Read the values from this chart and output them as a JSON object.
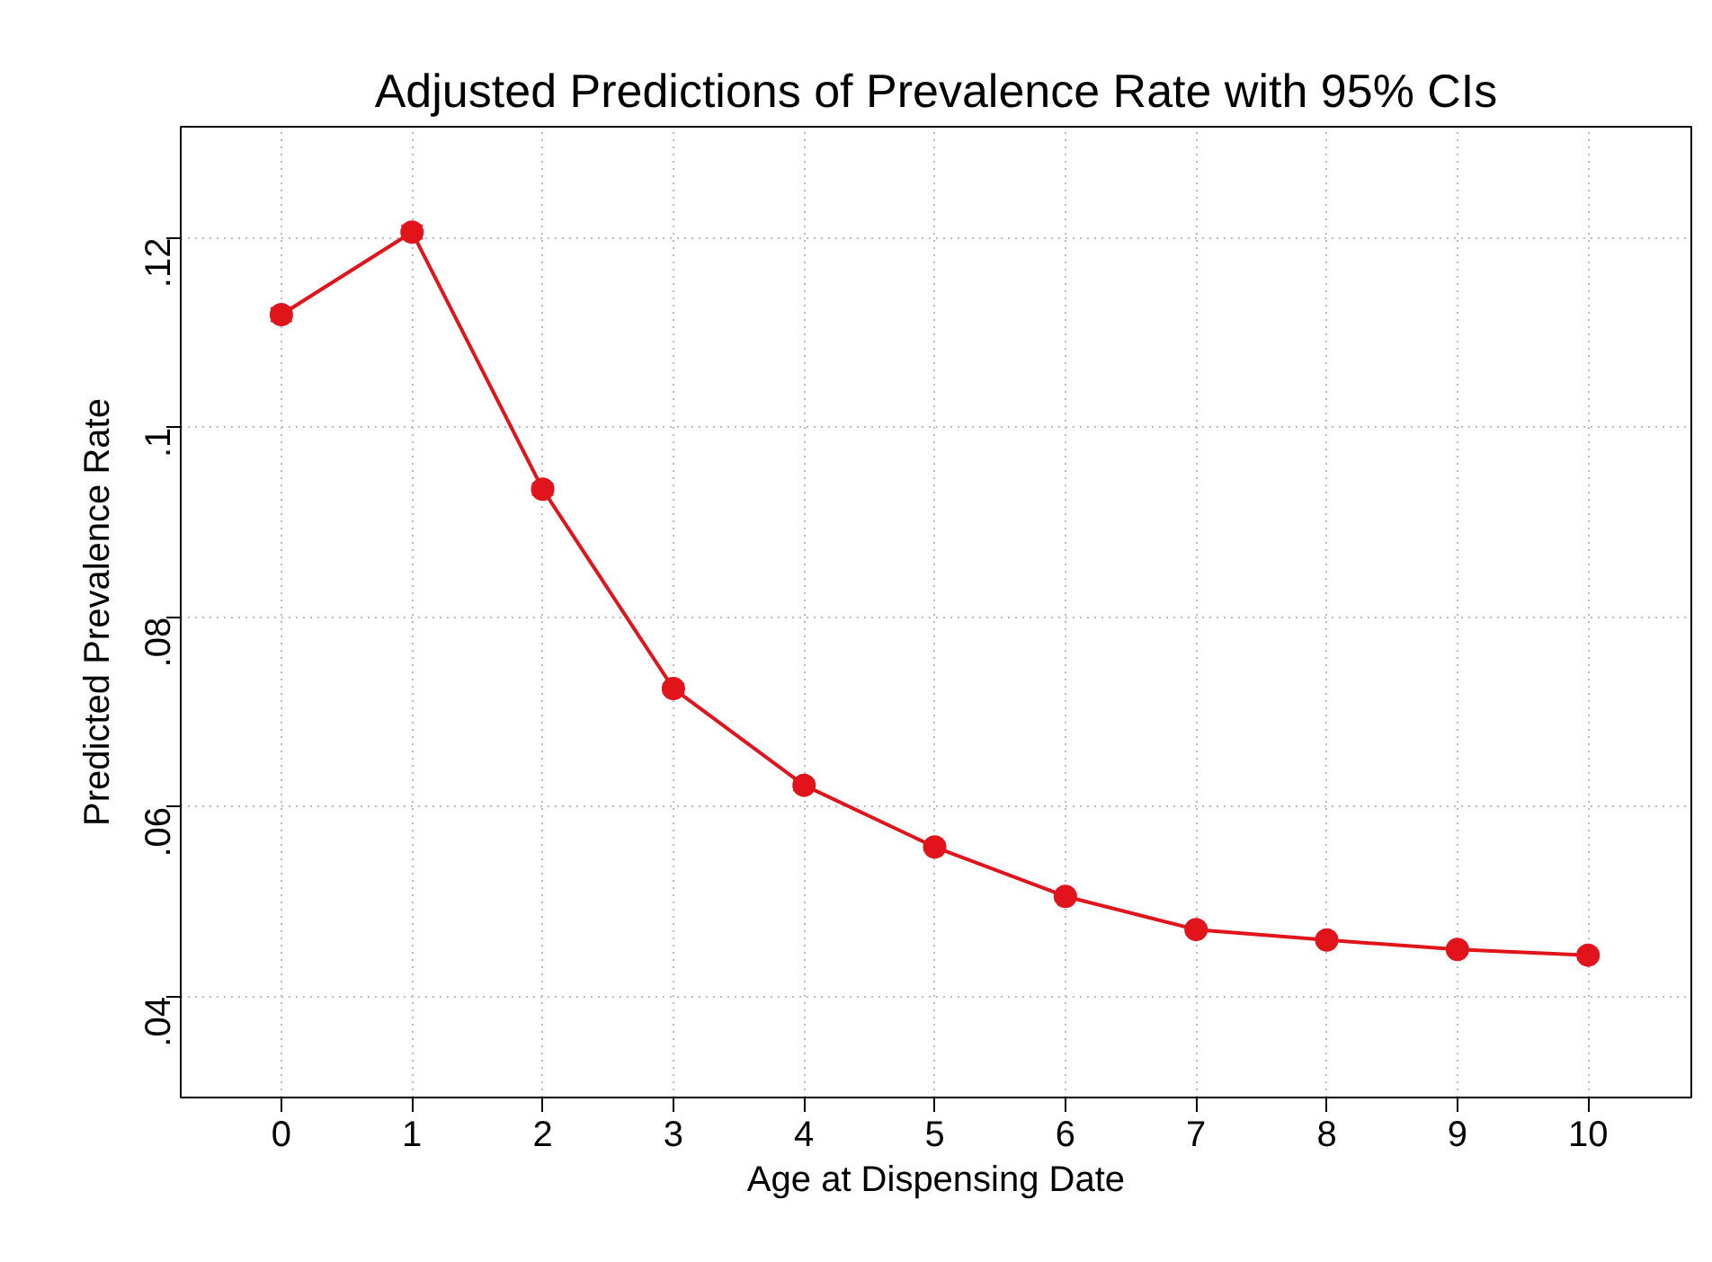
{
  "chart_data": {
    "type": "line",
    "title": "Adjusted Predictions of Prevalence Rate with 95% CIs",
    "xlabel": "Age at Dispensing Date",
    "ylabel": "Predicted Prevalence Rate",
    "x": [
      0,
      1,
      2,
      3,
      4,
      5,
      6,
      7,
      8,
      9,
      10
    ],
    "series": [
      {
        "color": "#e2141b",
        "values": [
          0.1119,
          0.1206,
          0.0935,
          0.0725,
          0.0623,
          0.0558,
          0.0506,
          0.0471,
          0.046,
          0.045,
          0.0444
        ],
        "errors": [
          0.0007,
          0.0007,
          0.0006,
          0.0005,
          0.0005,
          0.0004,
          0.0004,
          0.0004,
          0.0004,
          0.0004,
          0.0004
        ]
      }
    ],
    "xlim": [
      -0.77,
      10.79
    ],
    "ylim": [
      0.0294,
      0.1317
    ],
    "xticks": [
      0,
      1,
      2,
      3,
      4,
      5,
      6,
      7,
      8,
      9,
      10
    ],
    "yticks": [
      {
        "value": 0.04,
        "label": ".04"
      },
      {
        "value": 0.06,
        "label": ".06"
      },
      {
        "value": 0.08,
        "label": ".08"
      },
      {
        "value": 0.1,
        "label": ".1"
      },
      {
        "value": 0.12,
        "label": ".12"
      }
    ],
    "grid": true,
    "marker": "circle",
    "line_style": "solid"
  }
}
